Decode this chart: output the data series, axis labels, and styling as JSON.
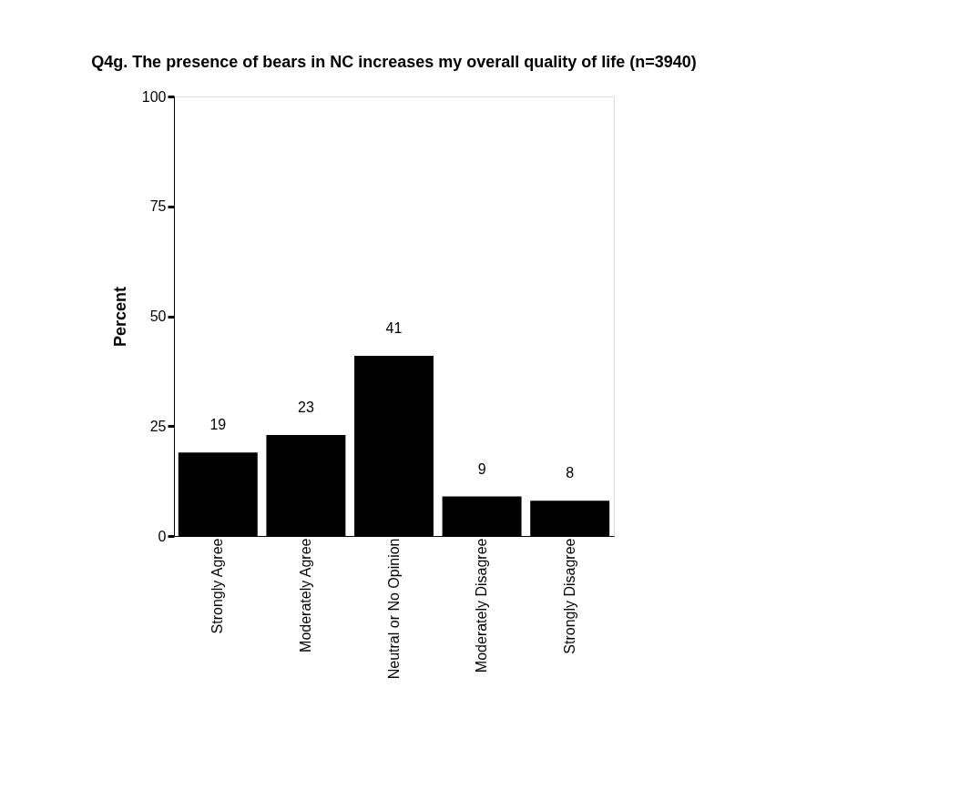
{
  "chart_data": {
    "type": "bar",
    "title": "Q4g. The presence of bears in NC increases my overall quality of life (n=3940)",
    "ylabel": "Percent",
    "categories": [
      "Strongly Agree",
      "Moderately Agree",
      "Neutral or No Opinion",
      "Moderately Disagree",
      "Strongly Disagree"
    ],
    "values": [
      19,
      23,
      41,
      9,
      8
    ],
    "color": "#000000",
    "ylim": [
      0,
      100
    ],
    "yticks": [
      0,
      25,
      50,
      75,
      100
    ],
    "grid": false,
    "data_labels": true
  }
}
